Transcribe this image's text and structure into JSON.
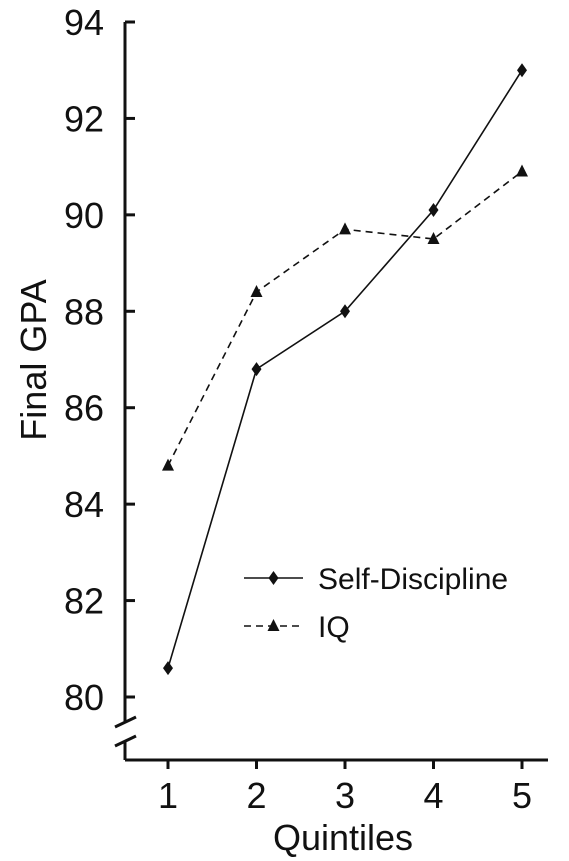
{
  "chart_data": {
    "type": "line",
    "title": "",
    "xlabel": "Quintiles",
    "ylabel": "Final GPA",
    "categories": [
      "1",
      "2",
      "3",
      "4",
      "5"
    ],
    "ylim": [
      80,
      94
    ],
    "yticks": [
      "80",
      "82",
      "84",
      "86",
      "88",
      "90",
      "92",
      "94"
    ],
    "y_axis_break": true,
    "grid": false,
    "legend_position": "bottom-right",
    "series": [
      {
        "name": "Self-Discipline",
        "values": [
          80.6,
          86.8,
          88.0,
          90.1,
          93.0
        ],
        "line_style": "solid",
        "marker": "diamond",
        "color": "#111111"
      },
      {
        "name": "IQ",
        "values": [
          84.8,
          88.4,
          89.7,
          89.5,
          90.9
        ],
        "line_style": "dashed",
        "marker": "triangle",
        "color": "#111111"
      }
    ]
  }
}
